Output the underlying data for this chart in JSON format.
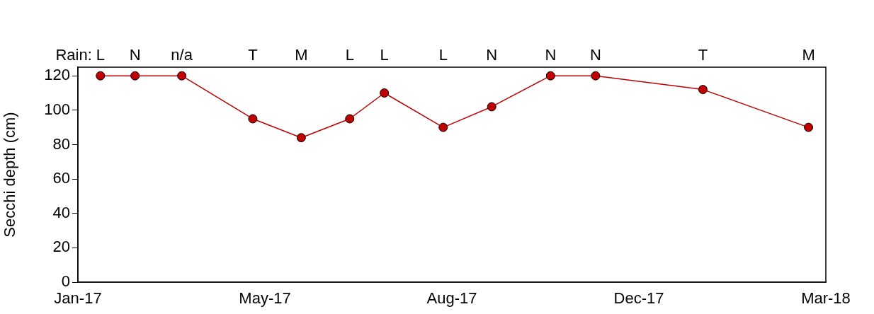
{
  "chart_data": {
    "type": "line",
    "ylabel": "Secchi depth (cm)",
    "x": [
      "2017-01-29",
      "2017-02-18",
      "2017-03-17",
      "2017-04-27",
      "2017-05-25",
      "2017-06-22",
      "2017-07-12",
      "2017-08-15",
      "2017-09-12",
      "2017-10-16",
      "2017-11-11",
      "2018-01-12",
      "2018-03-14"
    ],
    "series": [
      {
        "color": "#c00000",
        "values": [
          120,
          120,
          120,
          95,
          84,
          95,
          110,
          90,
          102,
          120,
          120,
          112,
          90
        ]
      }
    ],
    "xlim": [
      "2017-01-16",
      "2018-03-24"
    ],
    "xticks": [
      {
        "value": "2017-01-16",
        "label": "Jan-17"
      },
      {
        "value": "2017-05-04",
        "label": "May-17"
      },
      {
        "value": "2017-08-20",
        "label": "Aug-17"
      },
      {
        "value": "2017-12-06",
        "label": "Dec-17"
      },
      {
        "value": "2018-03-24",
        "label": "Mar-18"
      }
    ],
    "ylim": [
      0,
      125
    ],
    "yticks": [
      0,
      20,
      40,
      60,
      80,
      100,
      120
    ],
    "grid": false,
    "legend": false,
    "marker": "circle",
    "line_style": "solid",
    "annotations": [
      "Rain:",
      "L",
      "N",
      "n/a",
      "T",
      "M",
      "L",
      "L",
      "L",
      "N",
      "N",
      "N",
      "T",
      "M"
    ]
  }
}
